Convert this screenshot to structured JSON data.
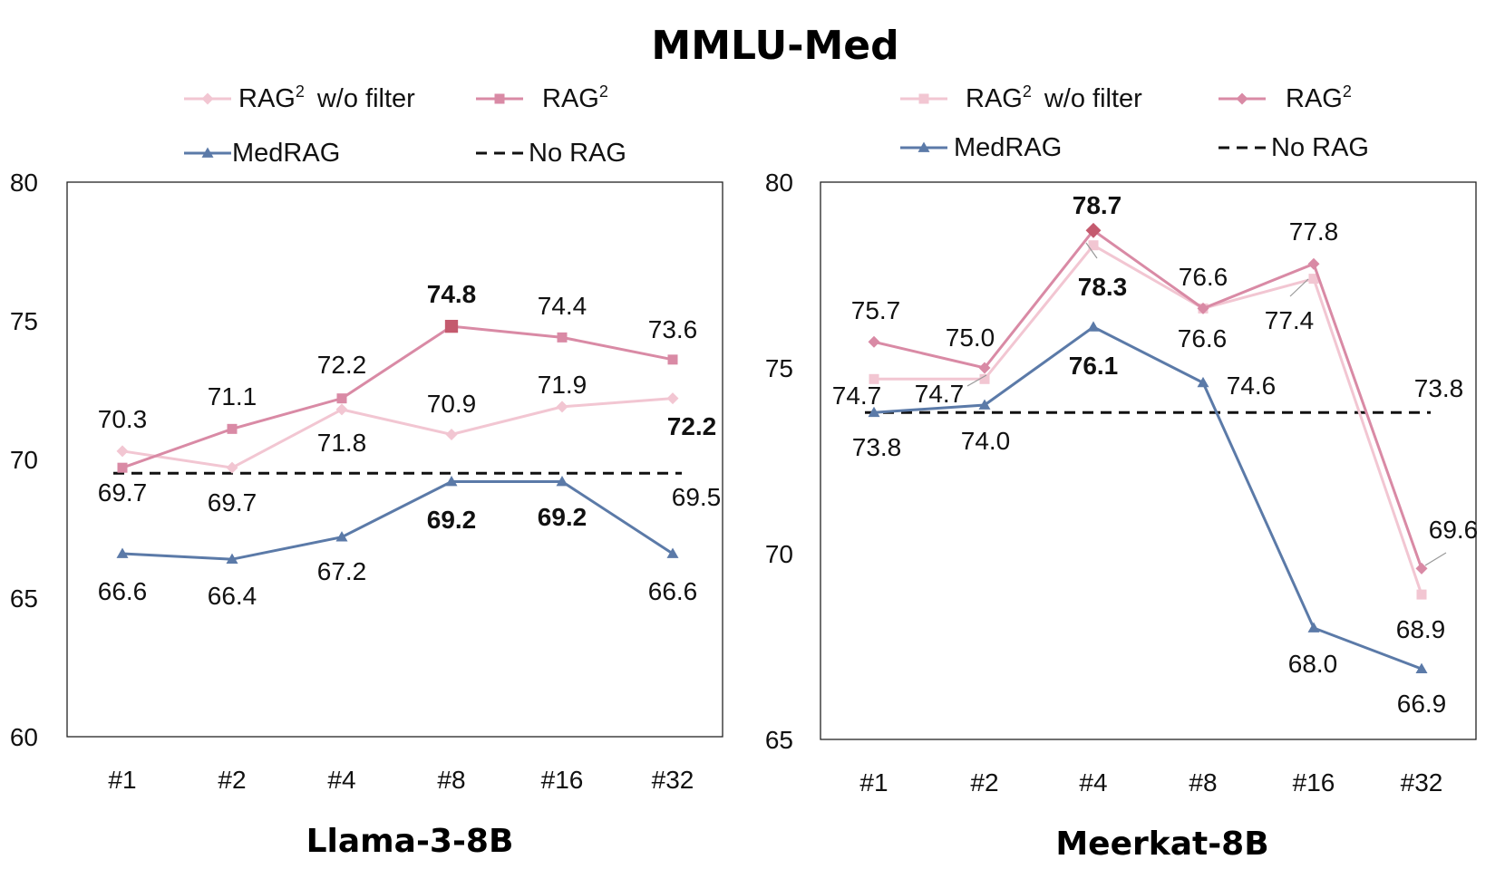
{
  "figure": {
    "title": "MMLU-Med"
  },
  "chart_data": [
    {
      "type": "line",
      "title": "Llama-3-8B",
      "xlabel": "",
      "ylabel": "",
      "categories": [
        "#1",
        "#2",
        "#4",
        "#8",
        "#16",
        "#32"
      ],
      "ylim": [
        60,
        80
      ],
      "yticks": [
        60,
        65,
        70,
        75,
        80
      ],
      "grid": false,
      "legend": [
        {
          "key": "wofilter",
          "label": "RAG",
          "sup": "2",
          "suffix": "w/o filter"
        },
        {
          "key": "rag2",
          "label": "RAG",
          "sup": "2",
          "suffix": ""
        },
        {
          "key": "medrag",
          "label": "MedRAG",
          "sup": "",
          "suffix": ""
        },
        {
          "key": "norag",
          "label": "No RAG",
          "sup": "",
          "suffix": ""
        }
      ],
      "series": [
        {
          "key": "wofilter",
          "name": "RAG2 w/o filter",
          "marker": "diamond",
          "color": "#f2c6d2",
          "values": [
            70.3,
            69.7,
            71.8,
            70.9,
            71.9,
            72.2
          ],
          "labels": [
            "70.3",
            "69.7",
            "71.8",
            "70.9",
            "71.9",
            "72.2"
          ],
          "bold": [
            false,
            false,
            false,
            false,
            false,
            true
          ]
        },
        {
          "key": "rag2",
          "name": "RAG2",
          "marker": "square",
          "color": "#d98aa5",
          "values": [
            69.7,
            71.1,
            72.2,
            74.8,
            74.4,
            73.6
          ],
          "labels": [
            "69.7",
            "71.1",
            "72.2",
            "74.8",
            "74.4",
            "73.6"
          ],
          "bold": [
            false,
            false,
            false,
            true,
            false,
            false
          ]
        },
        {
          "key": "medrag",
          "name": "MedRAG",
          "marker": "triangle",
          "color": "#5b7aa8",
          "values": [
            66.6,
            66.4,
            67.2,
            69.2,
            69.2,
            66.6
          ],
          "labels": [
            "66.6",
            "66.4",
            "67.2",
            "69.2",
            "69.2",
            "66.6"
          ],
          "bold": [
            false,
            false,
            false,
            true,
            true,
            false
          ]
        }
      ],
      "baseline": {
        "key": "norag",
        "name": "No RAG",
        "value": 69.5,
        "label": "69.5",
        "color": "#111111"
      }
    },
    {
      "type": "line",
      "title": "Meerkat-8B",
      "xlabel": "",
      "ylabel": "",
      "categories": [
        "#1",
        "#2",
        "#4",
        "#8",
        "#16",
        "#32"
      ],
      "ylim": [
        65,
        80
      ],
      "yticks": [
        65,
        70,
        75,
        80
      ],
      "grid": false,
      "legend": [
        {
          "key": "wofilter",
          "label": "RAG",
          "sup": "2",
          "suffix": "w/o filter"
        },
        {
          "key": "rag2",
          "label": "RAG",
          "sup": "2",
          "suffix": ""
        },
        {
          "key": "medrag",
          "label": "MedRAG",
          "sup": "",
          "suffix": ""
        },
        {
          "key": "norag",
          "label": "No RAG",
          "sup": "",
          "suffix": ""
        }
      ],
      "series": [
        {
          "key": "wofilter",
          "name": "RAG2 w/o filter",
          "marker": "square",
          "color": "#f2c6d2",
          "values": [
            74.7,
            74.7,
            78.3,
            76.6,
            77.4,
            68.9
          ],
          "labels": [
            "74.7",
            "74.7",
            "78.3",
            "76.6",
            "77.4",
            "68.9"
          ],
          "bold": [
            false,
            false,
            true,
            false,
            false,
            false
          ]
        },
        {
          "key": "rag2",
          "name": "RAG2",
          "marker": "diamond",
          "color": "#d98aa5",
          "values": [
            75.7,
            75.0,
            78.7,
            76.6,
            77.8,
            69.6
          ],
          "labels": [
            "75.7",
            "75.0",
            "78.7",
            "76.6",
            "77.8",
            "69.6"
          ],
          "bold": [
            false,
            false,
            true,
            false,
            false,
            false
          ]
        },
        {
          "key": "medrag",
          "name": "MedRAG",
          "marker": "triangle",
          "color": "#5b7aa8",
          "values": [
            73.8,
            74.0,
            76.1,
            74.6,
            68.0,
            66.9
          ],
          "labels": [
            "73.8",
            "74.0",
            "76.1",
            "74.6",
            "68.0",
            "66.9"
          ],
          "bold": [
            false,
            false,
            true,
            false,
            false,
            false
          ]
        }
      ],
      "baseline": {
        "key": "norag",
        "name": "No RAG",
        "value": 73.8,
        "label": "73.8",
        "color": "#111111"
      }
    }
  ]
}
